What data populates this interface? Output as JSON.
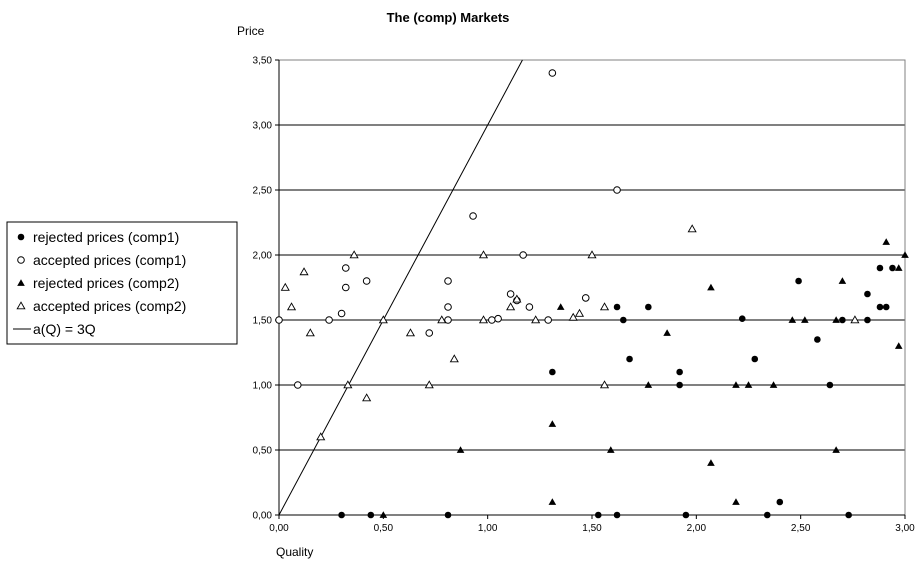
{
  "chart_data": {
    "type": "scatter",
    "title": "The (comp) Markets",
    "xlabel": "Quality",
    "ylabel": "Price",
    "xlim": [
      0,
      3
    ],
    "ylim": [
      0,
      3.5
    ],
    "x_ticks": [
      "0,00",
      "0,50",
      "1,00",
      "1,50",
      "2,00",
      "2,50",
      "3,00"
    ],
    "y_ticks": [
      "0,00",
      "0,50",
      "1,00",
      "1,50",
      "2,00",
      "2,50",
      "3,00",
      "3,50"
    ],
    "grid": "horizontal",
    "legend_position": "left",
    "series": [
      {
        "name": "rejected prices (comp1)",
        "marker": "filled-circle",
        "color": "#000000",
        "points": [
          [
            0.3,
            0.0
          ],
          [
            0.44,
            0.0
          ],
          [
            0.81,
            0.0
          ],
          [
            1.31,
            1.1
          ],
          [
            1.53,
            0.0
          ],
          [
            1.62,
            1.6
          ],
          [
            1.62,
            0.0
          ],
          [
            1.65,
            1.5
          ],
          [
            1.68,
            1.2
          ],
          [
            1.77,
            1.6
          ],
          [
            1.92,
            1.1
          ],
          [
            1.92,
            1.0
          ],
          [
            1.95,
            0.0
          ],
          [
            2.22,
            1.51
          ],
          [
            2.28,
            1.2
          ],
          [
            2.34,
            0.0
          ],
          [
            2.4,
            0.1
          ],
          [
            2.49,
            1.8
          ],
          [
            2.58,
            1.35
          ],
          [
            2.64,
            1.0
          ],
          [
            2.7,
            1.5
          ],
          [
            2.73,
            0.0
          ],
          [
            2.82,
            1.7
          ],
          [
            2.82,
            1.5
          ],
          [
            2.88,
            1.9
          ],
          [
            2.88,
            1.6
          ],
          [
            2.91,
            1.6
          ],
          [
            2.94,
            1.9
          ]
        ]
      },
      {
        "name": "accepted prices (comp1)",
        "marker": "open-circle",
        "color": "#000000",
        "points": [
          [
            0.0,
            1.5
          ],
          [
            0.09,
            1.0
          ],
          [
            0.24,
            1.5
          ],
          [
            0.3,
            1.55
          ],
          [
            0.32,
            1.9
          ],
          [
            0.32,
            1.75
          ],
          [
            0.42,
            1.8
          ],
          [
            0.72,
            1.4
          ],
          [
            0.81,
            1.8
          ],
          [
            0.81,
            1.6
          ],
          [
            0.81,
            1.5
          ],
          [
            0.93,
            2.3
          ],
          [
            1.02,
            1.5
          ],
          [
            1.05,
            1.51
          ],
          [
            1.11,
            1.7
          ],
          [
            1.14,
            1.65
          ],
          [
            1.17,
            2.0
          ],
          [
            1.2,
            1.6
          ],
          [
            1.29,
            1.5
          ],
          [
            1.31,
            3.4
          ],
          [
            1.47,
            1.67
          ],
          [
            1.62,
            2.5
          ]
        ]
      },
      {
        "name": "rejected prices (comp2)",
        "marker": "filled-triangle",
        "color": "#000000",
        "points": [
          [
            0.5,
            0.0
          ],
          [
            0.87,
            0.5
          ],
          [
            1.31,
            0.7
          ],
          [
            1.31,
            0.1
          ],
          [
            1.35,
            1.6
          ],
          [
            1.59,
            0.5
          ],
          [
            1.77,
            1.0
          ],
          [
            1.86,
            1.4
          ],
          [
            2.07,
            1.75
          ],
          [
            2.07,
            0.4
          ],
          [
            2.19,
            1.0
          ],
          [
            2.19,
            0.1
          ],
          [
            2.25,
            1.0
          ],
          [
            2.37,
            1.0
          ],
          [
            2.46,
            1.5
          ],
          [
            2.52,
            1.5
          ],
          [
            2.67,
            1.5
          ],
          [
            2.67,
            0.5
          ],
          [
            2.7,
            1.8
          ],
          [
            2.91,
            2.1
          ],
          [
            2.97,
            1.9
          ],
          [
            2.97,
            1.3
          ],
          [
            3.0,
            2.0
          ]
        ]
      },
      {
        "name": "accepted prices (comp2)",
        "marker": "open-triangle",
        "color": "#000000",
        "points": [
          [
            0.03,
            1.75
          ],
          [
            0.06,
            1.6
          ],
          [
            0.12,
            1.87
          ],
          [
            0.15,
            1.4
          ],
          [
            0.2,
            0.6
          ],
          [
            0.33,
            1.0
          ],
          [
            0.36,
            2.0
          ],
          [
            0.42,
            0.9
          ],
          [
            0.5,
            1.5
          ],
          [
            0.63,
            1.4
          ],
          [
            0.72,
            1.0
          ],
          [
            0.78,
            1.5
          ],
          [
            0.84,
            1.2
          ],
          [
            0.98,
            2.0
          ],
          [
            0.98,
            1.5
          ],
          [
            1.11,
            1.6
          ],
          [
            1.14,
            1.66
          ],
          [
            1.23,
            1.5
          ],
          [
            1.41,
            1.52
          ],
          [
            1.44,
            1.55
          ],
          [
            1.5,
            2.0
          ],
          [
            1.56,
            1.6
          ],
          [
            1.56,
            1.0
          ],
          [
            1.98,
            2.2
          ],
          [
            2.76,
            1.5
          ]
        ]
      },
      {
        "name": "a(Q) = 3Q",
        "marker": "line",
        "color": "#000000",
        "points": [
          [
            0,
            0
          ],
          [
            1,
            3
          ]
        ]
      }
    ]
  }
}
